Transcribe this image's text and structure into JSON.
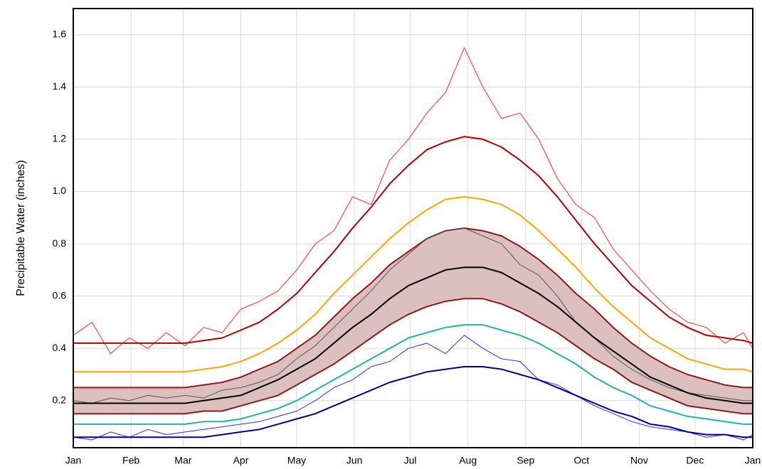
{
  "chart_data": {
    "type": "line",
    "y_label": "Precipitable Water (inches)",
    "x": [
      1,
      11,
      21,
      31,
      41,
      51,
      61,
      71,
      81,
      91,
      101,
      111,
      121,
      131,
      141,
      151,
      161,
      171,
      181,
      191,
      201,
      211,
      221,
      231,
      241,
      251,
      261,
      271,
      281,
      291,
      301,
      311,
      321,
      331,
      341,
      351,
      361,
      366
    ],
    "xlim": [
      1,
      366
    ],
    "xticks": [
      {
        "value": 1,
        "label": "Jan"
      },
      {
        "value": 32,
        "label": "Feb"
      },
      {
        "value": 60,
        "label": "Mar"
      },
      {
        "value": 91,
        "label": "Apr"
      },
      {
        "value": 121,
        "label": "May"
      },
      {
        "value": 152,
        "label": "Jun"
      },
      {
        "value": 182,
        "label": "Jul"
      },
      {
        "value": 213,
        "label": "Aug"
      },
      {
        "value": 244,
        "label": "Sep"
      },
      {
        "value": 274,
        "label": "Oct"
      },
      {
        "value": 305,
        "label": "Nov"
      },
      {
        "value": 335,
        "label": "Dec"
      },
      {
        "value": 366,
        "label": "Jan"
      }
    ],
    "ylim": [
      0.02,
      1.7
    ],
    "yticks": [
      0.2,
      0.4,
      0.6,
      0.8,
      {
        "value": 1,
        "label": "1.0"
      },
      1.2,
      1.4,
      1.6
    ],
    "grid": true,
    "series": [
      {
        "color": "#8b1a1a",
        "fill": "#dcc0c0",
        "width": 2,
        "values": [
          0.25,
          0.25,
          0.25,
          0.25,
          0.25,
          0.25,
          0.25,
          0.26,
          0.27,
          0.29,
          0.32,
          0.35,
          0.4,
          0.45,
          0.52,
          0.59,
          0.65,
          0.72,
          0.77,
          0.82,
          0.85,
          0.86,
          0.85,
          0.83,
          0.79,
          0.74,
          0.68,
          0.61,
          0.55,
          0.48,
          0.42,
          0.37,
          0.33,
          0.3,
          0.28,
          0.26,
          0.25,
          0.25
        ]
      },
      {
        "color": "#8b1a1a",
        "width": 2,
        "values": [
          0.15,
          0.15,
          0.15,
          0.15,
          0.15,
          0.15,
          0.15,
          0.16,
          0.16,
          0.18,
          0.2,
          0.22,
          0.26,
          0.3,
          0.34,
          0.39,
          0.44,
          0.49,
          0.53,
          0.56,
          0.58,
          0.59,
          0.59,
          0.57,
          0.54,
          0.5,
          0.46,
          0.41,
          0.36,
          0.32,
          0.27,
          0.24,
          0.21,
          0.18,
          0.17,
          0.16,
          0.15,
          0.15
        ]
      },
      {
        "color": "#ff2a2a",
        "width": 1,
        "values": [
          0.45,
          0.5,
          0.38,
          0.44,
          0.4,
          0.46,
          0.41,
          0.48,
          0.46,
          0.55,
          0.58,
          0.62,
          0.7,
          0.8,
          0.85,
          0.98,
          0.95,
          1.12,
          1.2,
          1.3,
          1.38,
          1.55,
          1.4,
          1.28,
          1.3,
          1.2,
          1.05,
          0.95,
          0.9,
          0.78,
          0.7,
          0.62,
          0.55,
          0.5,
          0.48,
          0.42,
          0.46,
          0.4
        ]
      },
      {
        "color": "#b00000",
        "width": 2,
        "values": [
          0.42,
          0.42,
          0.42,
          0.42,
          0.42,
          0.42,
          0.42,
          0.43,
          0.44,
          0.47,
          0.5,
          0.55,
          0.61,
          0.69,
          0.77,
          0.86,
          0.94,
          1.03,
          1.1,
          1.16,
          1.19,
          1.21,
          1.2,
          1.17,
          1.12,
          1.06,
          0.98,
          0.89,
          0.8,
          0.72,
          0.64,
          0.58,
          0.52,
          0.48,
          0.45,
          0.44,
          0.43,
          0.42
        ]
      },
      {
        "color": "#ffa500",
        "width": 2,
        "values": [
          0.31,
          0.31,
          0.31,
          0.31,
          0.31,
          0.31,
          0.31,
          0.32,
          0.33,
          0.35,
          0.38,
          0.42,
          0.47,
          0.53,
          0.61,
          0.68,
          0.75,
          0.82,
          0.88,
          0.93,
          0.97,
          0.98,
          0.97,
          0.95,
          0.91,
          0.85,
          0.78,
          0.71,
          0.63,
          0.56,
          0.5,
          0.44,
          0.4,
          0.36,
          0.34,
          0.32,
          0.32,
          0.31
        ]
      },
      {
        "color": "#555555",
        "width": 1,
        "values": [
          0.2,
          0.19,
          0.21,
          0.2,
          0.22,
          0.21,
          0.22,
          0.21,
          0.24,
          0.25,
          0.27,
          0.3,
          0.36,
          0.41,
          0.48,
          0.55,
          0.62,
          0.7,
          0.76,
          0.82,
          0.85,
          0.86,
          0.83,
          0.8,
          0.72,
          0.68,
          0.6,
          0.5,
          0.44,
          0.37,
          0.32,
          0.28,
          0.25,
          0.23,
          0.22,
          0.21,
          0.2,
          0.2
        ]
      },
      {
        "color": "#000000",
        "width": 2,
        "values": [
          0.19,
          0.19,
          0.19,
          0.19,
          0.19,
          0.19,
          0.19,
          0.2,
          0.21,
          0.22,
          0.25,
          0.28,
          0.32,
          0.36,
          0.42,
          0.48,
          0.53,
          0.59,
          0.64,
          0.67,
          0.7,
          0.71,
          0.71,
          0.69,
          0.65,
          0.61,
          0.56,
          0.5,
          0.44,
          0.39,
          0.34,
          0.29,
          0.26,
          0.23,
          0.21,
          0.2,
          0.19,
          0.19
        ]
      },
      {
        "color": "#20b2aa",
        "width": 2,
        "values": [
          0.11,
          0.11,
          0.11,
          0.11,
          0.11,
          0.11,
          0.11,
          0.12,
          0.12,
          0.13,
          0.15,
          0.17,
          0.2,
          0.24,
          0.28,
          0.32,
          0.36,
          0.4,
          0.44,
          0.46,
          0.48,
          0.49,
          0.49,
          0.47,
          0.45,
          0.42,
          0.38,
          0.34,
          0.29,
          0.25,
          0.22,
          0.18,
          0.16,
          0.14,
          0.13,
          0.12,
          0.11,
          0.11
        ]
      },
      {
        "color": "#2a2aff",
        "width": 1,
        "values": [
          0.06,
          0.05,
          0.08,
          0.06,
          0.09,
          0.07,
          0.08,
          0.09,
          0.1,
          0.11,
          0.12,
          0.14,
          0.16,
          0.2,
          0.25,
          0.28,
          0.33,
          0.35,
          0.4,
          0.42,
          0.38,
          0.45,
          0.4,
          0.36,
          0.35,
          0.28,
          0.26,
          0.22,
          0.18,
          0.15,
          0.12,
          0.1,
          0.09,
          0.08,
          0.06,
          0.07,
          0.05,
          0.07
        ]
      },
      {
        "color": "#00008b",
        "width": 2,
        "values": [
          0.06,
          0.06,
          0.06,
          0.06,
          0.06,
          0.06,
          0.06,
          0.06,
          0.07,
          0.08,
          0.09,
          0.11,
          0.13,
          0.15,
          0.18,
          0.21,
          0.24,
          0.27,
          0.29,
          0.31,
          0.32,
          0.33,
          0.33,
          0.32,
          0.3,
          0.28,
          0.25,
          0.22,
          0.19,
          0.16,
          0.14,
          0.11,
          0.1,
          0.08,
          0.07,
          0.07,
          0.06,
          0.06
        ]
      }
    ]
  }
}
